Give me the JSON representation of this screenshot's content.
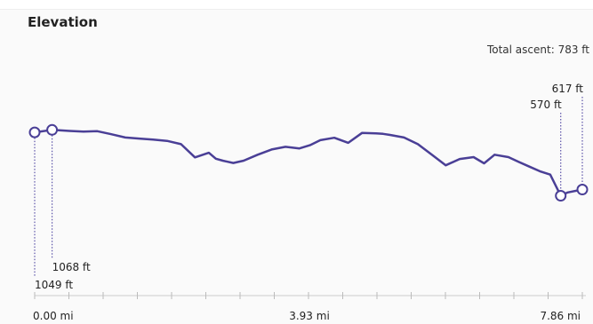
{
  "chart_data": {
    "type": "line",
    "title": "Elevation",
    "summary": "Total ascent: 783 ft",
    "x_ticks": [
      "0.00 mi",
      "3.93 mi",
      "7.86 mi"
    ],
    "xlim": [
      0,
      7.86
    ],
    "ylim": [
      540,
      1100
    ],
    "series": [
      {
        "x": [
          0,
          0.25,
          0.5,
          0.7,
          0.9,
          1.1,
          1.3,
          1.5,
          1.7,
          1.9,
          2.1,
          2.3,
          2.5,
          2.6,
          2.7,
          2.85,
          3.0,
          3.2,
          3.4,
          3.6,
          3.8,
          3.95,
          4.1,
          4.3,
          4.5,
          4.7,
          4.9,
          5.0,
          5.1,
          5.3,
          5.5,
          5.7,
          5.9,
          6.1,
          6.3,
          6.45,
          6.6,
          6.8,
          6.95,
          7.1,
          7.25,
          7.4,
          7.55,
          7.65,
          7.86
        ],
        "y": [
          1049,
          1068,
          1060,
          1055,
          1058,
          1035,
          1010,
          1002,
          995,
          985,
          960,
          860,
          895,
          850,
          835,
          818,
          835,
          880,
          920,
          940,
          928,
          952,
          990,
          1008,
          970,
          1045,
          1042,
          1038,
          1030,
          1010,
          960,
          880,
          800,
          848,
          862,
          815,
          880,
          862,
          825,
          790,
          755,
          730,
          570,
          595,
          617
        ]
      }
    ],
    "annotations": [
      {
        "x": 0,
        "label": "1049 ft"
      },
      {
        "x": 0.25,
        "label": "1068 ft"
      },
      {
        "x": 7.55,
        "label": "570 ft"
      },
      {
        "x": 7.86,
        "label": "617 ft"
      }
    ]
  }
}
